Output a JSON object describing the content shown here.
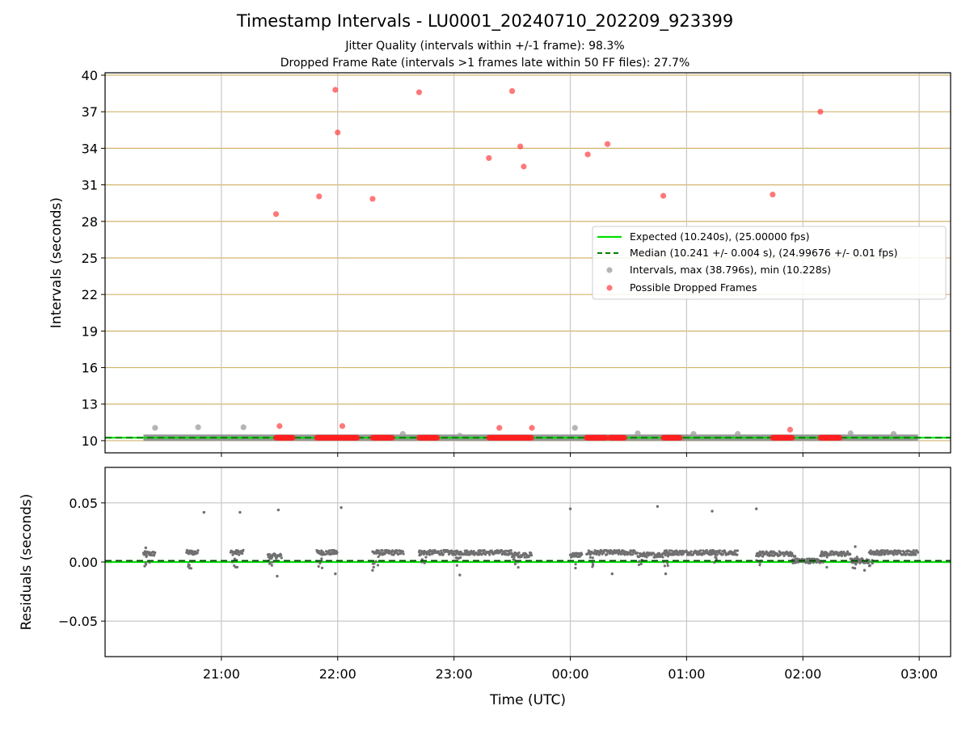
{
  "chart_data": [
    {
      "type": "scatter",
      "title": "Timestamp Intervals - LU0001_20240710_202209_923399",
      "subtitle_lines": [
        "Jitter Quality (intervals within +/-1 frame): 98.3%",
        "Dropped Frame Rate (intervals >1 frames late within 50 FF files): 27.7%"
      ],
      "xlabel": "",
      "ylabel": "Intervals (seconds)",
      "xlim_hours": [
        20.0,
        27.27
      ],
      "ylim": [
        9.0,
        40.2
      ],
      "x_ticks": [
        {
          "value": 21,
          "label": "21:00"
        },
        {
          "value": 22,
          "label": "22:00"
        },
        {
          "value": 23,
          "label": "23:00"
        },
        {
          "value": 24,
          "label": "00:00"
        },
        {
          "value": 25,
          "label": "01:00"
        },
        {
          "value": 26,
          "label": "02:00"
        },
        {
          "value": 27,
          "label": "03:00"
        }
      ],
      "y_ticks": [
        10,
        13,
        16,
        19,
        22,
        25,
        28,
        31,
        34,
        37,
        40
      ],
      "grid": "on",
      "legend_position": "center-right",
      "series": [
        {
          "name": "Expected (10.240s), (25.00000 fps)",
          "kind": "hline",
          "value": 10.24,
          "color": "#00e000",
          "style": "solid"
        },
        {
          "name": "Median (10.241 +/- 0.004 s), (24.99676 +/- 0.01 fps)",
          "kind": "hline",
          "value": 10.241,
          "color": "#008000",
          "style": "dashed"
        },
        {
          "name": "Intervals, max (38.796s), min (10.228s)",
          "kind": "scatter",
          "color": "#808080",
          "points": [
            [
              20.43,
              11.05
            ],
            [
              20.8,
              11.1
            ],
            [
              21.19,
              11.1
            ],
            [
              22.56,
              10.55
            ],
            [
              23.05,
              10.4
            ],
            [
              24.04,
              11.05
            ],
            [
              24.58,
              10.6
            ],
            [
              25.06,
              10.55
            ],
            [
              25.44,
              10.55
            ],
            [
              26.41,
              10.6
            ],
            [
              26.78,
              10.55
            ]
          ],
          "band": {
            "x_from": 20.33,
            "x_to": 26.99,
            "value": 10.24
          }
        },
        {
          "name": "Possible Dropped Frames",
          "kind": "scatter",
          "color": "#ff0000",
          "points": [
            [
              21.47,
              28.6
            ],
            [
              21.5,
              11.2
            ],
            [
              21.84,
              30.05
            ],
            [
              21.98,
              38.8
            ],
            [
              22.0,
              35.3
            ],
            [
              22.04,
              11.2
            ],
            [
              22.3,
              29.85
            ],
            [
              22.7,
              38.6
            ],
            [
              23.3,
              33.2
            ],
            [
              23.39,
              11.05
            ],
            [
              23.5,
              38.7
            ],
            [
              23.57,
              34.15
            ],
            [
              23.6,
              32.5
            ],
            [
              23.67,
              11.05
            ],
            [
              24.15,
              33.5
            ],
            [
              24.32,
              34.35
            ],
            [
              24.8,
              30.1
            ],
            [
              25.74,
              30.2
            ],
            [
              25.89,
              10.9
            ],
            [
              26.15,
              37.0
            ]
          ],
          "clusters": [
            [
              21.47,
              21.62
            ],
            [
              21.82,
              22.17
            ],
            [
              22.3,
              22.47
            ],
            [
              22.7,
              22.86
            ],
            [
              23.3,
              23.67
            ],
            [
              24.14,
              24.31
            ],
            [
              24.34,
              24.47
            ],
            [
              24.8,
              24.95
            ],
            [
              25.74,
              25.91
            ],
            [
              26.15,
              26.32
            ]
          ]
        }
      ]
    },
    {
      "type": "scatter",
      "title": "",
      "xlabel": "Time (UTC)",
      "ylabel": "Residuals (seconds)",
      "xlim_hours": [
        20.0,
        27.27
      ],
      "ylim": [
        -0.08,
        0.08
      ],
      "x_ticks": [
        {
          "value": 21,
          "label": "21:00"
        },
        {
          "value": 22,
          "label": "22:00"
        },
        {
          "value": 23,
          "label": "23:00"
        },
        {
          "value": 24,
          "label": "00:00"
        },
        {
          "value": 25,
          "label": "01:00"
        },
        {
          "value": 26,
          "label": "02:00"
        },
        {
          "value": 27,
          "label": "03:00"
        }
      ],
      "y_ticks": [
        {
          "value": 0.05,
          "label": "0.05"
        },
        {
          "value": 0.0,
          "label": "0.00"
        },
        {
          "value": -0.05,
          "label": "−0.05"
        }
      ],
      "grid": "on",
      "series": [
        {
          "kind": "hline",
          "value": 0.0,
          "color": "#00e000",
          "style": "solid"
        },
        {
          "kind": "hline",
          "value": 0.001,
          "color": "#004d00",
          "style": "dashed"
        },
        {
          "kind": "scatter",
          "color": "#707070",
          "segments": [
            {
              "x_from": 20.33,
              "x_to": 20.43,
              "level": 0.007
            },
            {
              "x_from": 20.7,
              "x_to": 20.8,
              "level": 0.008
            },
            {
              "x_from": 21.08,
              "x_to": 21.19,
              "level": 0.008
            },
            {
              "x_from": 21.4,
              "x_to": 21.52,
              "level": 0.005
            },
            {
              "x_from": 21.82,
              "x_to": 22.0,
              "level": 0.008
            },
            {
              "x_from": 22.3,
              "x_to": 22.57,
              "level": 0.008
            },
            {
              "x_from": 22.7,
              "x_to": 23.0,
              "level": 0.008
            },
            {
              "x_from": 23.0,
              "x_to": 23.5,
              "level": 0.008
            },
            {
              "x_from": 23.5,
              "x_to": 23.67,
              "level": 0.006
            },
            {
              "x_from": 24.0,
              "x_to": 24.1,
              "level": 0.006
            },
            {
              "x_from": 24.14,
              "x_to": 24.58,
              "level": 0.008
            },
            {
              "x_from": 24.58,
              "x_to": 24.8,
              "level": 0.006
            },
            {
              "x_from": 24.8,
              "x_to": 25.25,
              "level": 0.008
            },
            {
              "x_from": 25.2,
              "x_to": 25.44,
              "level": 0.008
            },
            {
              "x_from": 25.6,
              "x_to": 25.91,
              "level": 0.007
            },
            {
              "x_from": 25.91,
              "x_to": 26.15,
              "level": 0.001
            },
            {
              "x_from": 26.15,
              "x_to": 26.41,
              "level": 0.007
            },
            {
              "x_from": 26.41,
              "x_to": 26.57,
              "level": 0.001
            },
            {
              "x_from": 26.57,
              "x_to": 26.99,
              "level": 0.008
            }
          ],
          "outliers": [
            [
              20.85,
              0.042
            ],
            [
              21.16,
              0.042
            ],
            [
              21.49,
              0.044
            ],
            [
              22.03,
              0.046
            ],
            [
              24.0,
              0.045
            ],
            [
              24.75,
              0.047
            ],
            [
              25.22,
              0.043
            ],
            [
              25.6,
              0.045
            ],
            [
              21.48,
              -0.012
            ],
            [
              23.05,
              -0.011
            ],
            [
              21.98,
              -0.01
            ],
            [
              22.3,
              -0.007
            ],
            [
              24.36,
              -0.01
            ],
            [
              24.82,
              -0.01
            ],
            [
              26.53,
              -0.007
            ],
            [
              20.35,
              0.012
            ],
            [
              26.45,
              0.013
            ]
          ]
        }
      ]
    }
  ]
}
